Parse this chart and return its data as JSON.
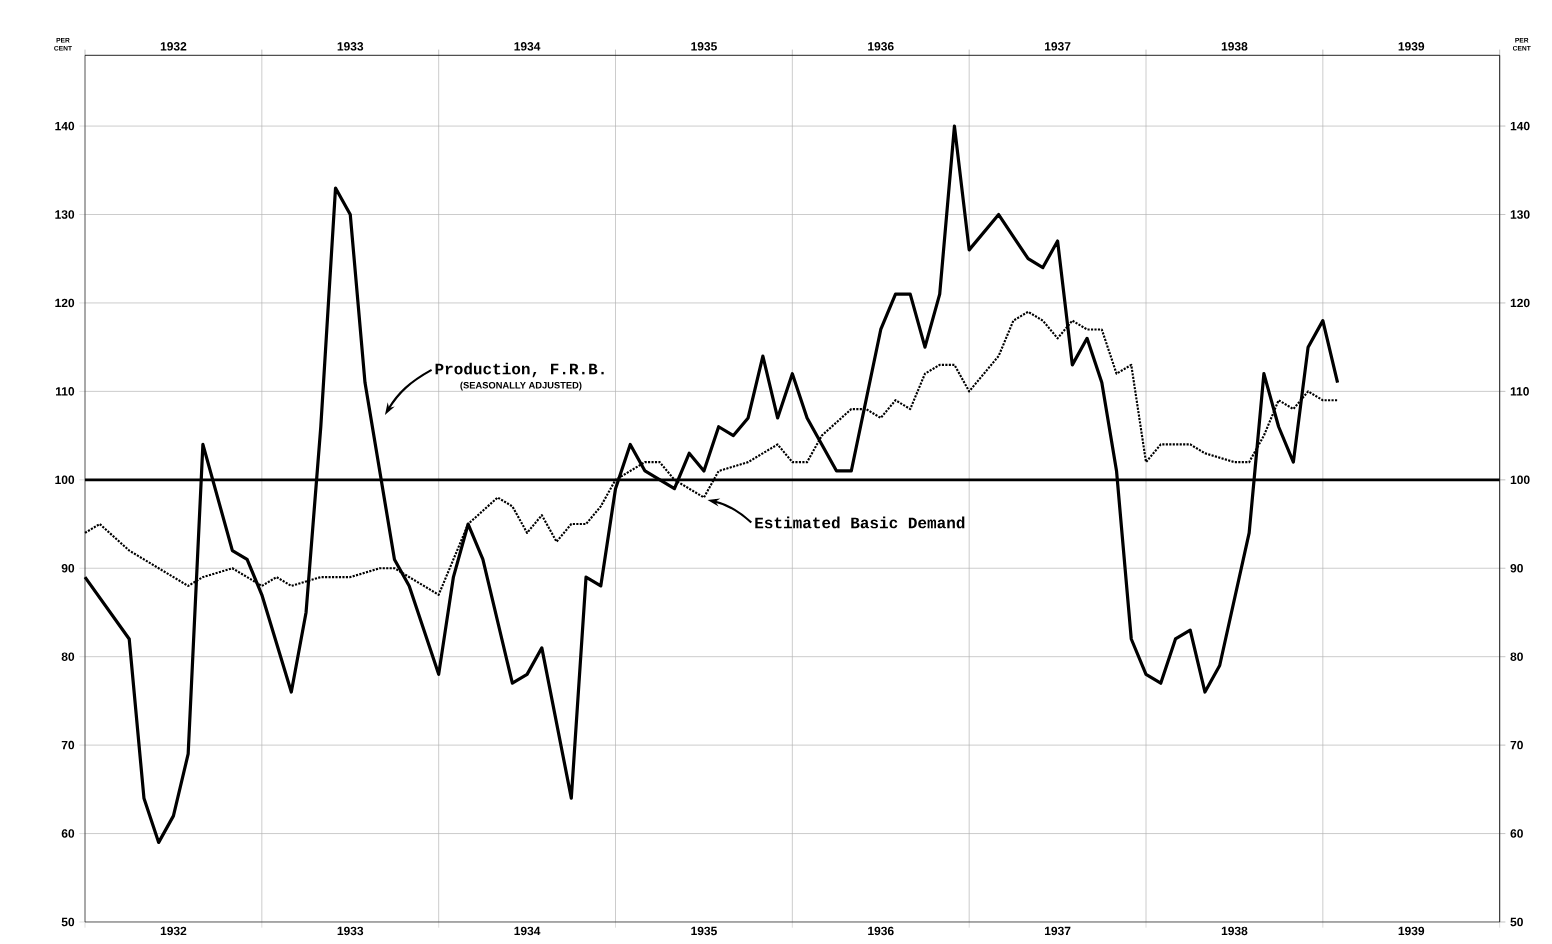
{
  "chart_data": {
    "type": "line",
    "ylabel": "PER CENT",
    "y2label": "PER CENT",
    "xlim": [
      "1932-01",
      "1940-01"
    ],
    "x2lim": [
      "1932-01",
      "1940-01"
    ],
    "xticks": [
      {
        "value": "1932-01",
        "label": null
      },
      {
        "value": "1932-07",
        "label": "1932"
      },
      {
        "value": "1933-01",
        "label": null
      },
      {
        "value": "1933-07",
        "label": "1933"
      },
      {
        "value": "1934-01",
        "label": null
      },
      {
        "value": "1934-07",
        "label": "1934"
      },
      {
        "value": "1935-01",
        "label": null
      },
      {
        "value": "1935-07",
        "label": "1935"
      },
      {
        "value": "1936-01",
        "label": null
      },
      {
        "value": "1936-07",
        "label": "1936"
      },
      {
        "value": "1937-01",
        "label": null
      },
      {
        "value": "1937-07",
        "label": "1937"
      },
      {
        "value": "1938-01",
        "label": null
      },
      {
        "value": "1938-07",
        "label": "1938"
      },
      {
        "value": "1939-01",
        "label": null
      },
      {
        "value": "1939-07",
        "label": "1939"
      },
      {
        "value": "1940-01",
        "label": null
      }
    ],
    "x2ticks": [
      {
        "value": "1932-01",
        "label": null
      },
      {
        "value": "1932-07",
        "label": "1932"
      },
      {
        "value": "1933-01",
        "label": null
      },
      {
        "value": "1933-07",
        "label": "1933"
      },
      {
        "value": "1934-01",
        "label": null
      },
      {
        "value": "1934-07",
        "label": "1934"
      },
      {
        "value": "1935-01",
        "label": null
      },
      {
        "value": "1935-07",
        "label": "1935"
      },
      {
        "value": "1936-01",
        "label": null
      },
      {
        "value": "1936-07",
        "label": "1936"
      },
      {
        "value": "1937-01",
        "label": null
      },
      {
        "value": "1937-07",
        "label": "1937"
      },
      {
        "value": "1938-01",
        "label": null
      },
      {
        "value": "1938-07",
        "label": "1938"
      },
      {
        "value": "1939-01",
        "label": null
      },
      {
        "value": "1939-07",
        "label": "1939"
      },
      {
        "value": "1940-01",
        "label": null
      }
    ],
    "ylim": [
      50,
      148
    ],
    "yticks": [
      50,
      60,
      70,
      80,
      90,
      100,
      110,
      120,
      130,
      140
    ],
    "y2lim": [
      50,
      148
    ],
    "y2ticks": [
      50,
      60,
      70,
      80,
      90,
      100,
      110,
      120,
      130,
      140
    ],
    "grid": true,
    "marker": "none",
    "ref_lines": [
      {
        "axis": "y",
        "value": 100,
        "color": "#000000"
      }
    ],
    "annotations": [
      "Production, F.R.B.",
      "(SEASONALLY ADJUSTED)",
      "Estimated Basic Demand"
    ],
    "series": [
      {
        "color": "#000000",
        "line_style": "solid",
        "x": [
          "1932-01",
          "1932-04",
          "1932-05",
          "1932-06",
          "1932-07",
          "1932-08",
          "1932-09",
          "1932-11",
          "1932-12",
          "1933-01",
          "1933-03",
          "1933-04",
          "1933-05",
          "1933-06",
          "1933-07",
          "1933-08",
          "1933-10",
          "1933-11",
          "1934-01",
          "1934-02",
          "1934-03",
          "1934-04",
          "1934-06",
          "1934-07",
          "1934-08",
          "1934-10",
          "1934-11",
          "1934-12",
          "1935-01",
          "1935-02",
          "1935-03",
          "1935-05",
          "1935-06",
          "1935-07",
          "1935-08",
          "1935-09",
          "1935-10",
          "1935-11",
          "1935-12",
          "1936-01",
          "1936-02",
          "1936-03",
          "1936-04",
          "1936-05",
          "1936-07",
          "1936-08",
          "1936-09",
          "1936-10",
          "1936-11",
          "1936-12",
          "1937-01",
          "1937-03",
          "1937-05",
          "1937-06",
          "1937-07",
          "1937-08",
          "1937-09",
          "1937-10",
          "1937-11",
          "1937-12",
          "1938-01",
          "1938-02",
          "1938-03",
          "1938-04",
          "1938-05",
          "1938-06",
          "1938-08",
          "1938-09",
          "1938-10",
          "1938-11",
          "1938-12",
          "1939-01",
          "1939-02"
        ],
        "values": [
          89,
          82,
          64,
          59,
          62,
          69,
          104,
          92,
          91,
          87,
          76,
          85,
          106,
          133,
          130,
          111,
          91,
          88,
          78,
          89,
          95,
          91,
          77,
          78,
          81,
          64,
          89,
          88,
          99,
          104,
          101,
          99,
          103,
          101,
          106,
          105,
          107,
          114,
          107,
          112,
          107,
          104,
          101,
          101,
          117,
          121,
          121,
          115,
          121,
          140,
          126,
          130,
          125,
          124,
          127,
          113,
          116,
          111,
          101,
          82,
          78,
          77,
          82,
          83,
          76,
          79,
          94,
          112,
          106,
          102,
          115,
          118,
          111
        ]
      },
      {
        "color": "#000000",
        "line_style": "dotted",
        "x": [
          "1932-01",
          "1932-02",
          "1932-04",
          "1932-06",
          "1932-08",
          "1932-09",
          "1932-11",
          "1932-12",
          "1933-01",
          "1933-02",
          "1933-03",
          "1933-05",
          "1933-07",
          "1933-09",
          "1933-10",
          "1933-12",
          "1934-01",
          "1934-02",
          "1934-03",
          "1934-05",
          "1934-06",
          "1934-07",
          "1934-08",
          "1934-09",
          "1934-10",
          "1934-11",
          "1934-12",
          "1935-01",
          "1935-03",
          "1935-04",
          "1935-05",
          "1935-06",
          "1935-07",
          "1935-08",
          "1935-10",
          "1935-12",
          "1936-01",
          "1936-02",
          "1936-03",
          "1936-05",
          "1936-06",
          "1936-07",
          "1936-08",
          "1936-09",
          "1936-10",
          "1936-11",
          "1936-12",
          "1937-01",
          "1937-03",
          "1937-04",
          "1937-05",
          "1937-06",
          "1937-07",
          "1937-08",
          "1937-09",
          "1937-10",
          "1937-11",
          "1937-12",
          "1938-01",
          "1938-02",
          "1938-04",
          "1938-05",
          "1938-07",
          "1938-08",
          "1938-09",
          "1938-10",
          "1938-11",
          "1938-12",
          "1939-01",
          "1939-02"
        ],
        "values": [
          94,
          95,
          92,
          90,
          88,
          89,
          90,
          89,
          88,
          89,
          88,
          89,
          89,
          90,
          90,
          88,
          87,
          91,
          95,
          98,
          97,
          94,
          96,
          93,
          95,
          95,
          97,
          100,
          102,
          102,
          100,
          99,
          98,
          101,
          102,
          104,
          102,
          102,
          105,
          108,
          108,
          107,
          109,
          108,
          112,
          113,
          113,
          110,
          114,
          118,
          119,
          118,
          116,
          118,
          117,
          117,
          112,
          113,
          102,
          104,
          104,
          103,
          102,
          102,
          105,
          109,
          108,
          110,
          109,
          109
        ]
      }
    ]
  }
}
